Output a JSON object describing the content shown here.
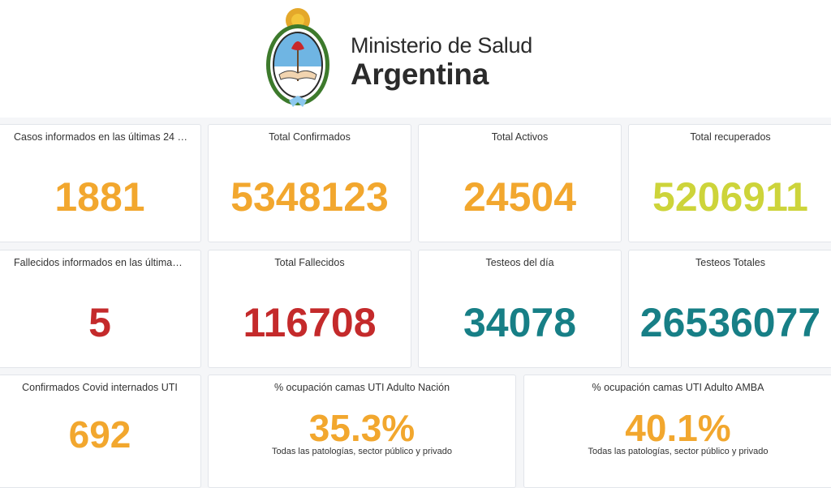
{
  "header": {
    "ministry": "Ministerio de Salud",
    "country": "Argentina"
  },
  "colors": {
    "orange": "#f2a72e",
    "green": "#cdd43a",
    "red": "#c42a2b",
    "teal": "#177f86"
  },
  "row1": [
    {
      "title": "Casos informados en las últimas 24 …",
      "value": "1881"
    },
    {
      "title": "Total Confirmados",
      "value": "5348123"
    },
    {
      "title": "Total Activos",
      "value": "24504"
    },
    {
      "title": "Total recuperados",
      "value": "5206911"
    }
  ],
  "row2": [
    {
      "title": "Fallecidos informados en las última…",
      "value": "5"
    },
    {
      "title": "Total Fallecidos",
      "value": "116708"
    },
    {
      "title": "Testeos del día",
      "value": "34078"
    },
    {
      "title": "Testeos Totales",
      "value": "26536077"
    }
  ],
  "row3": [
    {
      "title": "Confirmados Covid internados UTI",
      "value": "692"
    },
    {
      "title": "% ocupación camas UTI Adulto Nación",
      "value": "35.3%",
      "subtitle": "Todas las patologías, sector público y privado"
    },
    {
      "title": "% ocupación camas UTI Adulto AMBA",
      "value": "40.1%",
      "subtitle": "Todas las patologías, sector público y privado"
    }
  ]
}
